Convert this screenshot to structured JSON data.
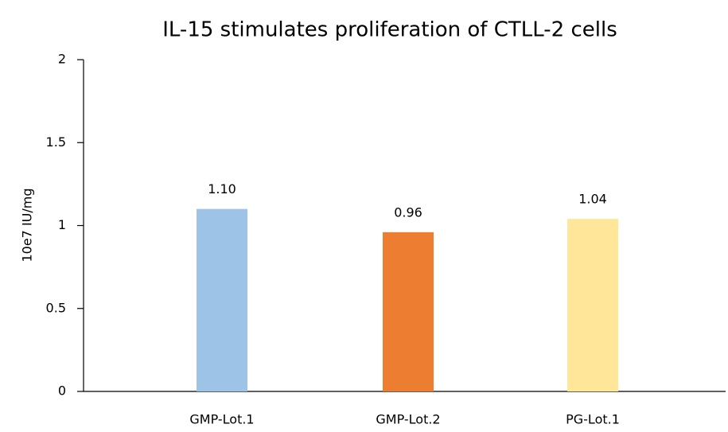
{
  "chart_data": {
    "type": "bar",
    "title": "IL-15 stimulates proliferation of CTLL-2 cells",
    "y_label": "10e7 IU/mg",
    "categories": [
      "GMP-Lot.1",
      "GMP-Lot.2",
      "PG-Lot.1"
    ],
    "values": [
      1.1,
      0.96,
      1.04
    ],
    "value_labels": [
      "1.10",
      "0.96",
      "1.04"
    ],
    "colors": [
      "#9dc3e6",
      "#ed7d31",
      "#ffe699"
    ],
    "ylim": [
      0,
      2
    ],
    "yticks": [
      0,
      0.5,
      1,
      1.5,
      2
    ],
    "grid": false
  }
}
